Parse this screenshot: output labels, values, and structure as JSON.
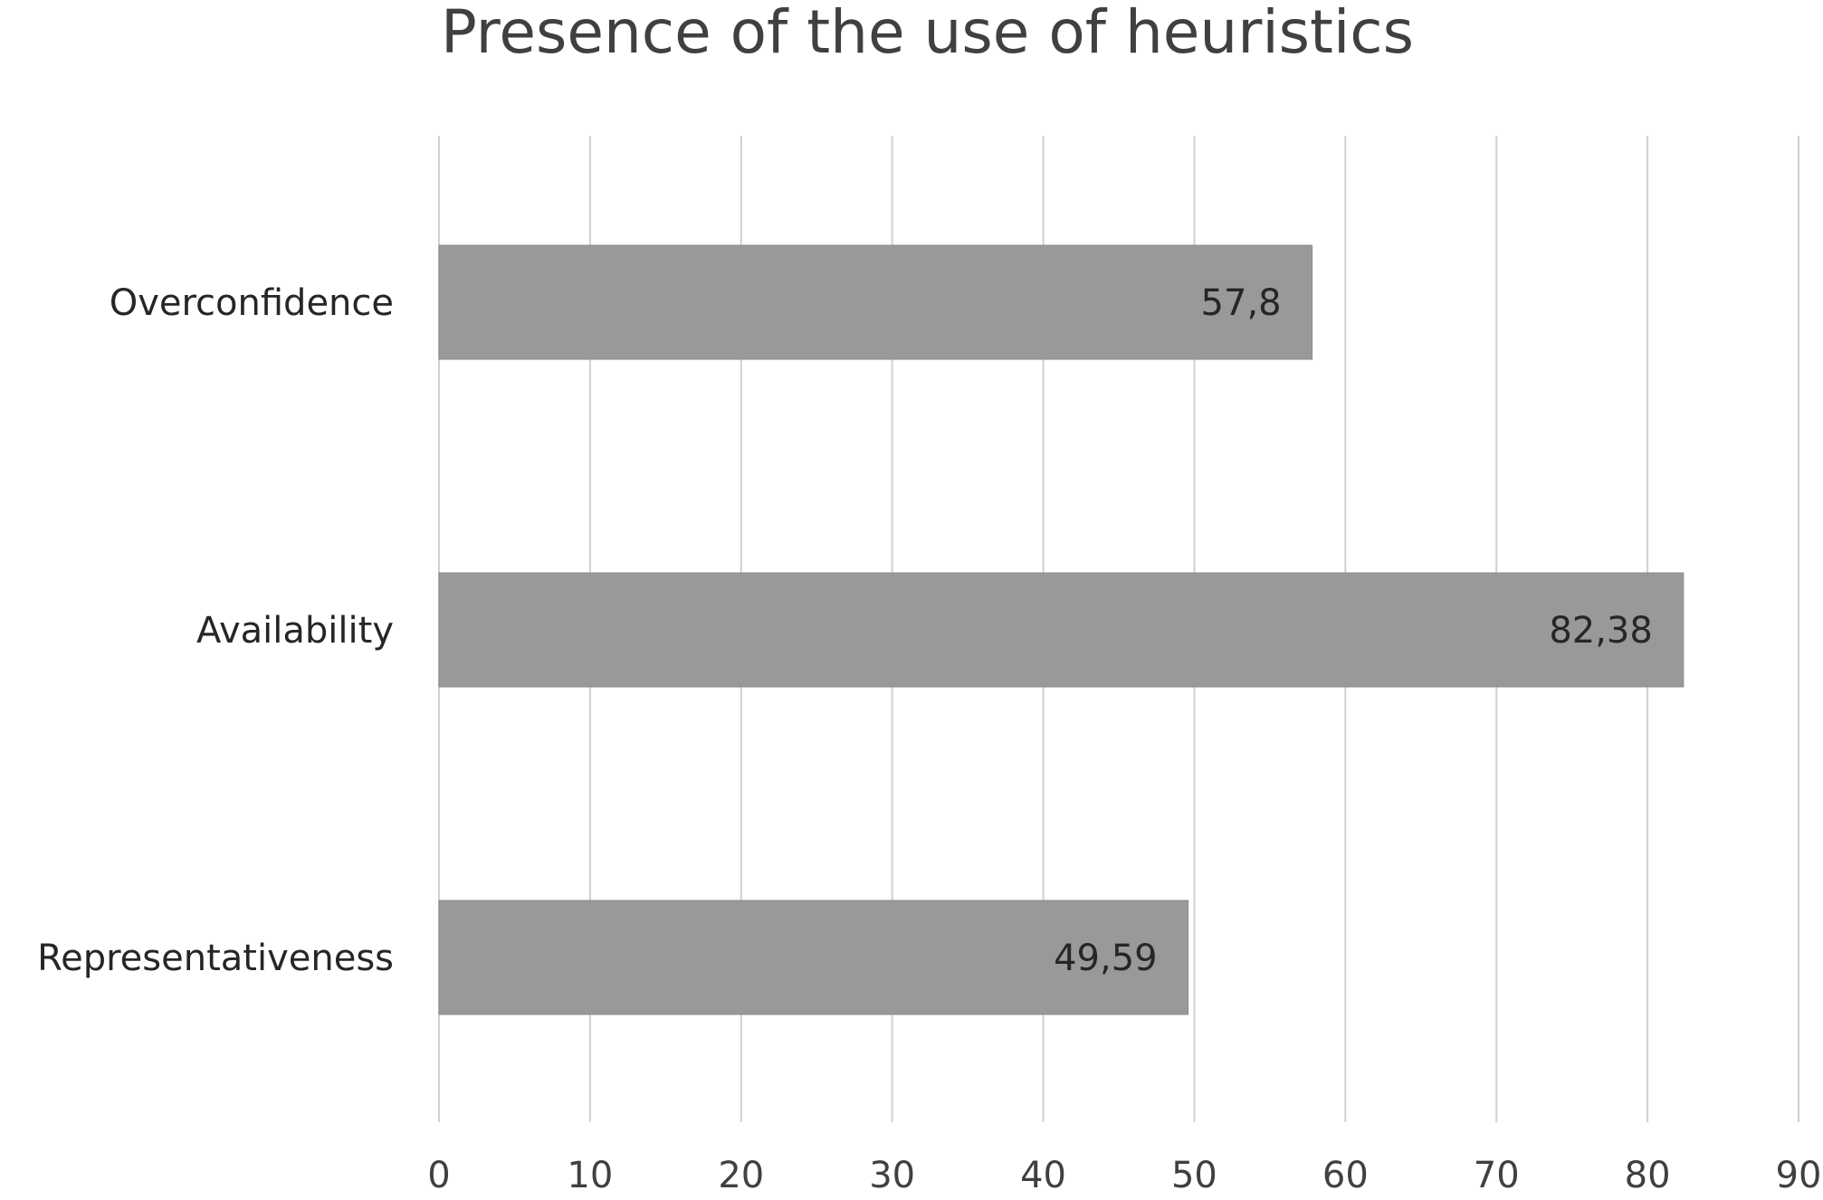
{
  "chart_data": {
    "type": "bar",
    "orientation": "horizontal",
    "title": "Presence of the use of heuristics",
    "xlabel": "",
    "ylabel": "",
    "categories": [
      "Overconfidence",
      "Availability",
      "Representativeness"
    ],
    "values": [
      57.8,
      82.38,
      49.59
    ],
    "data_labels": [
      "57,8",
      "82,38",
      "49,59"
    ],
    "xlim": [
      0,
      90
    ],
    "x_ticks": [
      0,
      10,
      20,
      30,
      40,
      50,
      60,
      70,
      80,
      90
    ],
    "x_tick_labels": [
      "0",
      "10",
      "20",
      "30",
      "40",
      "50",
      "60",
      "70",
      "80",
      "90"
    ],
    "grid": true,
    "legend": "none",
    "bar_color": "#999999",
    "grid_color": "#d0d0d0",
    "text_color": "#404040"
  }
}
